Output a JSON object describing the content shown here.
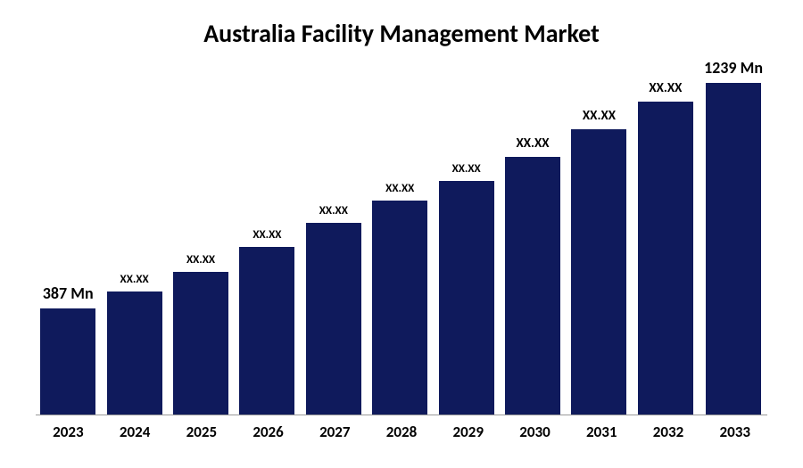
{
  "chart": {
    "type": "bar",
    "title": "Australia Facility Management Market",
    "title_fontsize": 28,
    "title_fontweight": 700,
    "title_color": "#000000",
    "background_color": "#ffffff",
    "bar_color": "#0f1a5c",
    "axis_line_color": "#999999",
    "categories": [
      "2023",
      "2024",
      "2025",
      "2026",
      "2027",
      "2028",
      "2029",
      "2030",
      "2031",
      "2032",
      "2033"
    ],
    "values": [
      387,
      450,
      520,
      610,
      700,
      780,
      850,
      940,
      1040,
      1140,
      1239
    ],
    "max_value": 1300,
    "value_labels": [
      "387 Mn",
      "XX.XX",
      "XX.XX",
      "XX.XX",
      "XX.XX",
      "XX.XX",
      "XX.XX",
      "XX.XX",
      "XX.XX",
      "XX.XX",
      "1239 Mn"
    ],
    "label_fontsizes": [
      18,
      13,
      13,
      13,
      13,
      13,
      13,
      15,
      15,
      15,
      18
    ],
    "x_tick_fontsize": 17,
    "x_tick_fontweight": 700,
    "bar_width": 0.85
  }
}
